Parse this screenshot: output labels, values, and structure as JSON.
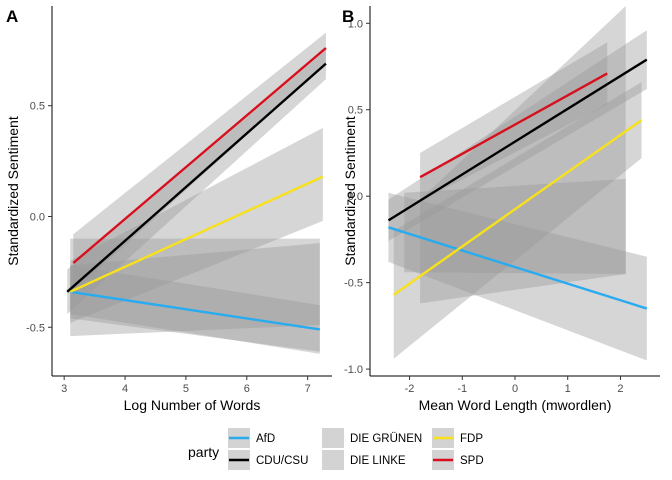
{
  "chart_data": [
    {
      "type": "line",
      "panel_tag": "A",
      "xlabel": "Log Number of Words",
      "ylabel": "Standardized Sentiment",
      "xlim": [
        2.8,
        7.4
      ],
      "ylim": [
        -0.72,
        0.95
      ],
      "x_ticks": [
        3,
        4,
        5,
        6,
        7
      ],
      "x_tick_labels": [
        "3",
        "4",
        "5",
        "6",
        "7"
      ],
      "y_ticks": [
        -0.5,
        0.0,
        0.5
      ],
      "y_tick_labels": [
        "-0.5",
        "0.0",
        "0.5"
      ],
      "grid": false,
      "series": [
        {
          "name": "AfD",
          "color": "#29abf0",
          "x": [
            3.1,
            7.2
          ],
          "y": [
            -0.34,
            -0.51
          ],
          "ci_low": [
            -0.46,
            -0.61
          ],
          "ci_high": [
            -0.22,
            -0.4
          ]
        },
        {
          "name": "CDU/CSU",
          "color": "#000000",
          "x": [
            3.05,
            7.3
          ],
          "y": [
            -0.34,
            0.69
          ],
          "ci_low": [
            -0.44,
            0.62
          ],
          "ci_high": [
            -0.24,
            0.75
          ]
        },
        {
          "name": "DIE GRÜNEN",
          "color": "#d3d3d3",
          "x": [
            3.1,
            7.2
          ],
          "y": [
            -0.3,
            -0.35
          ],
          "ci_low": [
            -0.44,
            -0.62
          ],
          "ci_high": [
            -0.1,
            -0.1
          ]
        },
        {
          "name": "DIE LINKE",
          "color": "#d3d3d3",
          "x": [
            3.1,
            7.2
          ],
          "y": [
            -0.38,
            -0.28
          ],
          "ci_low": [
            -0.54,
            -0.49
          ],
          "ci_high": [
            -0.22,
            -0.12
          ]
        },
        {
          "name": "FDP",
          "color": "#f8e11c",
          "x": [
            3.1,
            7.25
          ],
          "y": [
            -0.34,
            0.18
          ],
          "ci_low": [
            -0.48,
            -0.02
          ],
          "ci_high": [
            -0.2,
            0.4
          ]
        },
        {
          "name": "SPD",
          "color": "#d7101e",
          "x": [
            3.15,
            7.3
          ],
          "y": [
            -0.21,
            0.76
          ],
          "ci_low": [
            -0.34,
            0.69
          ],
          "ci_high": [
            -0.08,
            0.83
          ]
        }
      ]
    },
    {
      "type": "line",
      "panel_tag": "B",
      "xlabel": "Mean Word Length (mwordlen)",
      "ylabel": "Standardized Sentiment",
      "xlim": [
        -2.75,
        2.75
      ],
      "ylim": [
        -1.04,
        1.1
      ],
      "x_ticks": [
        -2,
        -1,
        0,
        1,
        2
      ],
      "x_tick_labels": [
        "-2",
        "-1",
        "0",
        "1",
        "2"
      ],
      "y_ticks": [
        -1.0,
        -0.5,
        0.0,
        0.5,
        1.0
      ],
      "y_tick_labels": [
        "-1.0",
        "-0.5",
        "0.0",
        "0.5",
        "1.0"
      ],
      "grid": false,
      "series": [
        {
          "name": "AfD",
          "color": "#29abf0",
          "x": [
            -2.4,
            2.5
          ],
          "y": [
            -0.18,
            -0.65
          ],
          "ci_low": [
            -0.38,
            -0.95
          ],
          "ci_high": [
            0.02,
            -0.35
          ]
        },
        {
          "name": "CDU/CSU",
          "color": "#000000",
          "x": [
            -2.4,
            2.5
          ],
          "y": [
            -0.14,
            0.79
          ],
          "ci_low": [
            -0.26,
            0.62
          ],
          "ci_high": [
            -0.02,
            0.96
          ]
        },
        {
          "name": "DIE GRÜNEN",
          "color": "#d3d3d3",
          "x": [
            -1.8,
            2.1
          ],
          "y": [
            -0.32,
            0.33
          ],
          "ci_low": [
            -0.62,
            -0.45
          ],
          "ci_high": [
            -0.02,
            1.1
          ]
        },
        {
          "name": "DIE LINKE",
          "color": "#d3d3d3",
          "x": [
            -2.1,
            2.1
          ],
          "y": [
            -0.21,
            -0.17
          ],
          "ci_low": [
            -0.44,
            -0.45
          ],
          "ci_high": [
            0.02,
            0.1
          ]
        },
        {
          "name": "FDP",
          "color": "#f8e11c",
          "x": [
            -2.3,
            2.4
          ],
          "y": [
            -0.57,
            0.44
          ],
          "ci_low": [
            -0.94,
            0.22
          ],
          "ci_high": [
            -0.2,
            0.66
          ]
        },
        {
          "name": "SPD",
          "color": "#d7101e",
          "x": [
            -1.8,
            1.75
          ],
          "y": [
            0.11,
            0.71
          ],
          "ci_low": [
            -0.03,
            0.53
          ],
          "ci_high": [
            0.25,
            0.89
          ]
        }
      ]
    }
  ],
  "legend": {
    "title": "party",
    "items": [
      {
        "name": "AfD",
        "color": "#29abf0"
      },
      {
        "name": "CDU/CSU",
        "color": "#000000"
      },
      {
        "name": "DIE GRÜNEN",
        "color": "#d3d3d3"
      },
      {
        "name": "DIE LINKE",
        "color": "#d3d3d3"
      },
      {
        "name": "FDP",
        "color": "#f8e11c"
      },
      {
        "name": "SPD",
        "color": "#d7101e"
      }
    ]
  },
  "ribbon_color": "#999999"
}
